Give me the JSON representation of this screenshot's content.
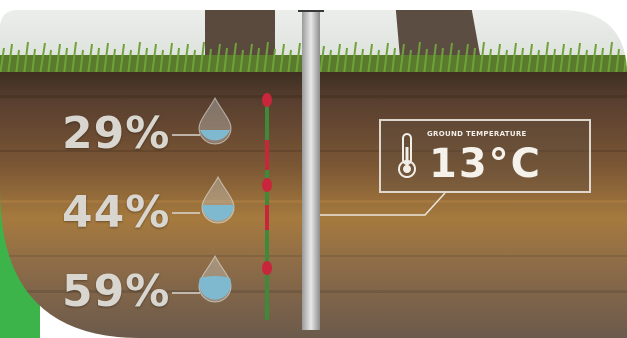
{
  "sensor": {
    "readings": [
      {
        "moisture": "29%",
        "fill_fraction": 0.4
      },
      {
        "moisture": "44%",
        "fill_fraction": 0.55
      },
      {
        "moisture": "59%",
        "fill_fraction": 0.7
      }
    ]
  },
  "temperature_card": {
    "label": "GROUND TEMPERATURE",
    "value": "13°C",
    "icon": "thermometer-icon"
  },
  "colors": {
    "accent_green": "#3cb44a",
    "water_blue": "#7fb9cf",
    "probe_red": "#c8263a",
    "probe_green": "#3f8a3a"
  }
}
